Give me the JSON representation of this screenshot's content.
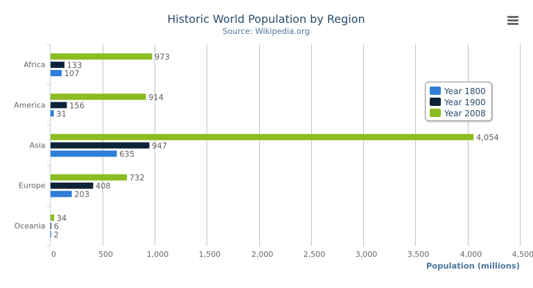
{
  "menu_icon": "hamburger-menu-icon",
  "chart_data": {
    "type": "bar",
    "orientation": "horizontal",
    "title": "Historic World Population by Region",
    "subtitle": "Source: Wikipedia.org",
    "categories": [
      "Africa",
      "America",
      "Asia",
      "Europe",
      "Oceania"
    ],
    "series": [
      {
        "name": "Year 1800",
        "color": "#2f7ed8",
        "values": [
          107,
          31,
          635,
          203,
          2
        ]
      },
      {
        "name": "Year 1900",
        "color": "#0d233a",
        "values": [
          133,
          156,
          947,
          408,
          6
        ]
      },
      {
        "name": "Year 2008",
        "color": "#8bbc21",
        "values": [
          973,
          914,
          4054,
          732,
          34
        ]
      }
    ],
    "xlabel": "",
    "ylabel": "Population (millions)",
    "ylim": [
      0,
      4500
    ],
    "tick_values": [
      0,
      500,
      1000,
      1500,
      2000,
      2500,
      3000,
      3500,
      4000,
      4500
    ],
    "tick_labels": [
      "0",
      "500",
      "1,000",
      "1,500",
      "2,000",
      "2,500",
      "3,000",
      "3,500",
      "4,000",
      "4,500"
    ],
    "data_labels": true,
    "grid": true,
    "legend_position": "right"
  }
}
